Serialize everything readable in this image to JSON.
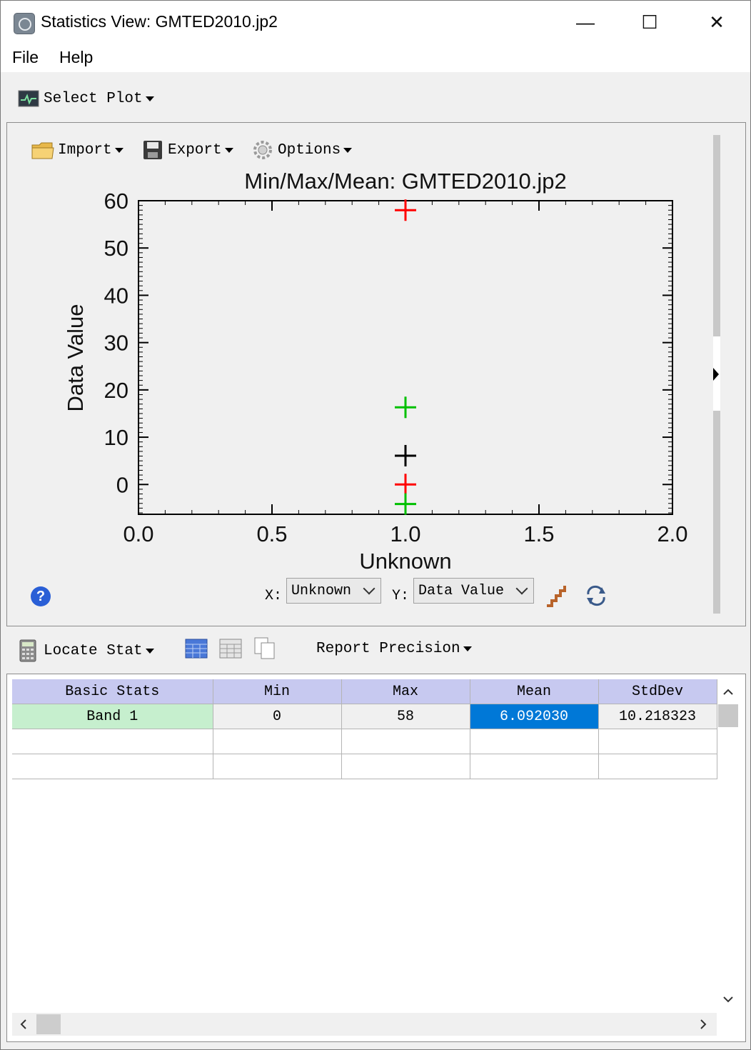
{
  "window": {
    "title": "Statistics View: GMTED2010.jp2",
    "minimize": "—",
    "maximize": "☐",
    "close": "✕"
  },
  "menu": {
    "file": "File",
    "help": "Help"
  },
  "toolbar": {
    "select_plot": "Select Plot"
  },
  "plot_toolbar": {
    "import": "Import",
    "export": "Export",
    "options": "Options"
  },
  "chart_data": {
    "type": "scatter",
    "title": "Min/Max/Mean: GMTED2010.jp2",
    "xlabel": "Unknown",
    "ylabel": "Data Value",
    "xlim": [
      0.0,
      2.0
    ],
    "ylim": [
      -6.3,
      60
    ],
    "x_ticks": [
      "0.0",
      "0.5",
      "1.0",
      "1.5",
      "2.0"
    ],
    "y_ticks": [
      "0",
      "10",
      "20",
      "30",
      "40",
      "50",
      "60"
    ],
    "x_tick_values": [
      0.0,
      0.5,
      1.0,
      1.5,
      2.0
    ],
    "y_tick_values": [
      0,
      10,
      20,
      30,
      40,
      50,
      60
    ],
    "points": [
      {
        "x": 1.0,
        "y": 58,
        "color": "#ff0000"
      },
      {
        "x": 1.0,
        "y": 16.31,
        "color": "#00c000"
      },
      {
        "x": 1.0,
        "y": 6.09,
        "color": "#000000"
      },
      {
        "x": 1.0,
        "y": 0,
        "color": "#ff0000"
      },
      {
        "x": 1.0,
        "y": -4.13,
        "color": "#00c000"
      }
    ]
  },
  "axis_select": {
    "x_label": "X:",
    "x_value": "Unknown",
    "y_label": "Y:",
    "y_value": "Data Value"
  },
  "stats_toolbar": {
    "locate_stat": "Locate Stat",
    "report_precision": "Report Precision"
  },
  "table": {
    "headers": [
      "Basic Stats",
      "Min",
      "Max",
      "Mean",
      "StdDev"
    ],
    "rows": [
      [
        "Band 1",
        "0",
        "58",
        "6.092030",
        "10.218323"
      ],
      [
        "",
        "",
        "",
        "",
        ""
      ],
      [
        "",
        "",
        "",
        "",
        ""
      ]
    ]
  },
  "colors": {
    "header_bg": "#c7c9f0",
    "band_cell_bg": "#c6efce",
    "selected_cell_bg": "#0078d7"
  }
}
